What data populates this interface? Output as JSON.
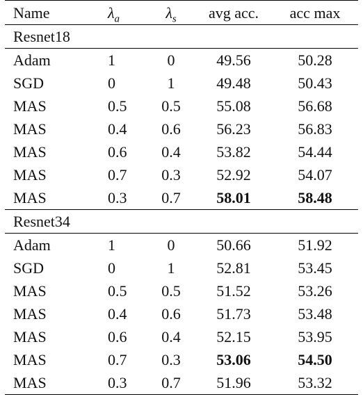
{
  "header": [
    {
      "text": "Name"
    },
    {
      "text": "λ",
      "sub": "a"
    },
    {
      "text": "λ",
      "sub": "s"
    },
    {
      "text": "avg acc."
    },
    {
      "text": "acc max"
    }
  ],
  "sections": [
    {
      "title": "Resnet18",
      "rows": [
        [
          {
            "text": "Adam"
          },
          {
            "text": "1"
          },
          {
            "text": "0"
          },
          {
            "text": "49.56"
          },
          {
            "text": "50.28"
          }
        ],
        [
          {
            "text": "SGD"
          },
          {
            "text": "0"
          },
          {
            "text": "1"
          },
          {
            "text": "49.48"
          },
          {
            "text": "50.43"
          }
        ],
        [
          {
            "text": "MAS"
          },
          {
            "text": "0.5"
          },
          {
            "text": "0.5"
          },
          {
            "text": "55.08"
          },
          {
            "text": "56.68"
          }
        ],
        [
          {
            "text": "MAS"
          },
          {
            "text": "0.4"
          },
          {
            "text": "0.6"
          },
          {
            "text": "56.23"
          },
          {
            "text": "56.83"
          }
        ],
        [
          {
            "text": "MAS"
          },
          {
            "text": "0.6"
          },
          {
            "text": "0.4"
          },
          {
            "text": "53.82"
          },
          {
            "text": "54.44"
          }
        ],
        [
          {
            "text": "MAS"
          },
          {
            "text": "0.7"
          },
          {
            "text": "0.3"
          },
          {
            "text": "52.92"
          },
          {
            "text": "54.07"
          }
        ],
        [
          {
            "text": "MAS"
          },
          {
            "text": "0.3"
          },
          {
            "text": "0.7"
          },
          {
            "text": "58.01",
            "bold": true
          },
          {
            "text": "58.48",
            "bold": true
          }
        ]
      ]
    },
    {
      "title": "Resnet34",
      "rows": [
        [
          {
            "text": "Adam"
          },
          {
            "text": "1"
          },
          {
            "text": "0"
          },
          {
            "text": "50.66"
          },
          {
            "text": "51.92"
          }
        ],
        [
          {
            "text": "SGD"
          },
          {
            "text": "0"
          },
          {
            "text": "1"
          },
          {
            "text": "52.81"
          },
          {
            "text": "53.45"
          }
        ],
        [
          {
            "text": "MAS"
          },
          {
            "text": "0.5"
          },
          {
            "text": "0.5"
          },
          {
            "text": "51.52"
          },
          {
            "text": "53.26"
          }
        ],
        [
          {
            "text": "MAS"
          },
          {
            "text": "0.4"
          },
          {
            "text": "0.6"
          },
          {
            "text": "51.73"
          },
          {
            "text": "53.48"
          }
        ],
        [
          {
            "text": "MAS"
          },
          {
            "text": "0.6"
          },
          {
            "text": "0.4"
          },
          {
            "text": "52.15"
          },
          {
            "text": "53.95"
          }
        ],
        [
          {
            "text": "MAS"
          },
          {
            "text": "0.7"
          },
          {
            "text": "0.3"
          },
          {
            "text": "53.06",
            "bold": true
          },
          {
            "text": "54.50",
            "bold": true
          }
        ],
        [
          {
            "text": "MAS"
          },
          {
            "text": "0.3"
          },
          {
            "text": "0.7"
          },
          {
            "text": "51.96"
          },
          {
            "text": "53.32"
          }
        ]
      ]
    }
  ]
}
